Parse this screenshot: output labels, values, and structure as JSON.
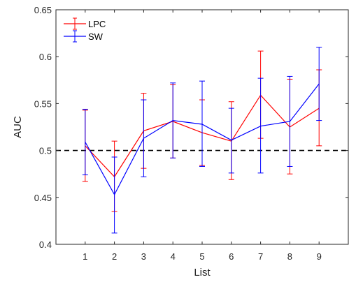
{
  "chart_data": {
    "type": "line",
    "title": "",
    "xlabel": "List",
    "ylabel": "AUC",
    "x": [
      1,
      2,
      3,
      4,
      5,
      6,
      7,
      8,
      9
    ],
    "xlim": [
      0,
      10
    ],
    "ylim": [
      0.4,
      0.65
    ],
    "xticks": [
      "1",
      "2",
      "3",
      "4",
      "5",
      "6",
      "7",
      "8",
      "9"
    ],
    "yticks": [
      "0.4",
      "0.45",
      "0.5",
      "0.55",
      "0.6",
      "0.65"
    ],
    "reference_line": {
      "y": 0.5,
      "style": "dashed",
      "color": "#000000"
    },
    "grid": false,
    "legend_position": "top-left",
    "error_bars": true,
    "series": [
      {
        "name": "LPC",
        "color": "#ff0000",
        "values": [
          0.505,
          0.472,
          0.521,
          0.531,
          0.519,
          0.51,
          0.559,
          0.525,
          0.545
        ],
        "lower": [
          0.467,
          0.435,
          0.481,
          0.492,
          0.484,
          0.469,
          0.513,
          0.475,
          0.505
        ],
        "upper": [
          0.543,
          0.51,
          0.561,
          0.57,
          0.554,
          0.552,
          0.606,
          0.576,
          0.586
        ]
      },
      {
        "name": "SW",
        "color": "#0000ff",
        "values": [
          0.509,
          0.453,
          0.513,
          0.532,
          0.528,
          0.511,
          0.526,
          0.531,
          0.571
        ],
        "lower": [
          0.474,
          0.412,
          0.472,
          0.492,
          0.483,
          0.476,
          0.476,
          0.483,
          0.532
        ],
        "upper": [
          0.544,
          0.493,
          0.554,
          0.572,
          0.574,
          0.545,
          0.577,
          0.579,
          0.61
        ]
      }
    ]
  }
}
